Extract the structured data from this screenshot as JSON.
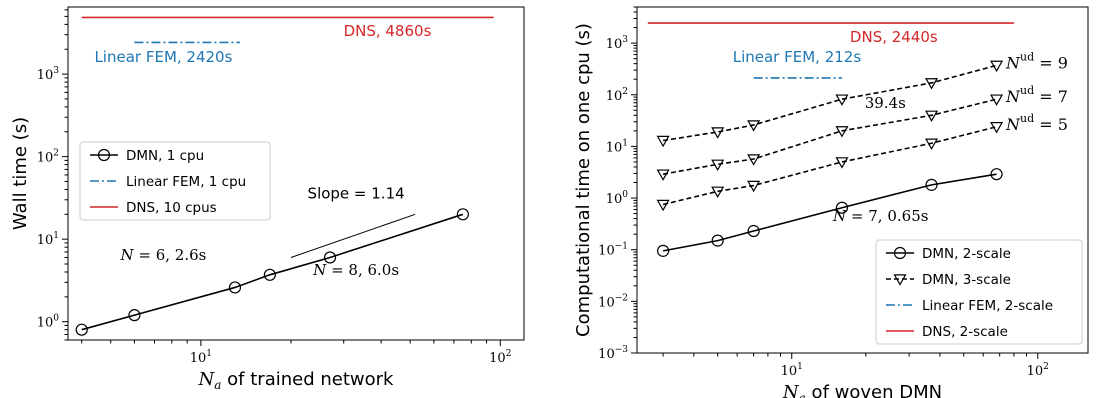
{
  "chart_data": [
    {
      "type": "line",
      "xscale": "log",
      "yscale": "log",
      "xlim": [
        3.6,
        120
      ],
      "ylim": [
        0.6,
        6500
      ],
      "xlabel_math": "N",
      "xlabel_sub": "a",
      "xlabel_text": "of trained network",
      "ylabel": "Wall time (s)",
      "x_ticks": [
        {
          "value": 10,
          "base": "10",
          "exp": "1"
        },
        {
          "value": 100,
          "base": "10",
          "exp": "2"
        }
      ],
      "y_ticks": [
        {
          "value": 1,
          "base": "10",
          "exp": "0"
        },
        {
          "value": 10,
          "base": "10",
          "exp": "1"
        },
        {
          "value": 100,
          "base": "10",
          "exp": "2"
        },
        {
          "value": 1000,
          "base": "10",
          "exp": "3"
        }
      ],
      "series": [
        {
          "name": "DMN, 1 cpu",
          "style": "solid-circle",
          "color": "#000000",
          "x": [
            4,
            6,
            13,
            17,
            27,
            75
          ],
          "y": [
            0.8,
            1.2,
            2.6,
            3.7,
            6.0,
            20
          ]
        },
        {
          "name": "Linear FEM, 1 cpu",
          "style": "dashdot",
          "color": "#1f77b4",
          "x": [
            6,
            13.5
          ],
          "y": [
            2420,
            2420
          ]
        },
        {
          "name": "DNS, 10 cpus",
          "style": "solid",
          "color": "#d62728",
          "x": [
            4,
            95
          ],
          "y": [
            4860,
            4860
          ]
        }
      ],
      "slope_line": {
        "x": [
          20,
          52
        ],
        "y": [
          6.0,
          20
        ]
      },
      "annotations": [
        {
          "text": "Slope = 1.14",
          "x": 33,
          "y": 31,
          "color": "#000000",
          "math": false
        },
        {
          "text": "N = 6,  2.6s",
          "x": 7.5,
          "y": 5.6,
          "color": "#000000",
          "math": true
        },
        {
          "text": "N = 8,  6.0s",
          "x": 33,
          "y": 3.7,
          "color": "#000000",
          "math": true
        },
        {
          "text": "DNS,  4860s",
          "x": 42,
          "y": 2900,
          "color": "#d62728",
          "math": false
        },
        {
          "text": "Linear FEM,  2420s",
          "x": 7.5,
          "y": 1400,
          "color": "#1f77b4",
          "math": false
        }
      ],
      "legend": "center-left"
    },
    {
      "type": "line",
      "xscale": "log",
      "yscale": "log",
      "xlim": [
        2.35,
        160
      ],
      "ylim": [
        0.001,
        5000
      ],
      "xlabel_math": "N",
      "xlabel_sub": "a",
      "xlabel_text": "of woven DMN",
      "ylabel": "Computational time on one cpu (s)",
      "x_ticks": [
        {
          "value": 10,
          "base": "10",
          "exp": "1"
        },
        {
          "value": 100,
          "base": "10",
          "exp": "2"
        }
      ],
      "y_ticks": [
        {
          "value": 0.001,
          "base": "10",
          "exp": "−3"
        },
        {
          "value": 0.01,
          "base": "10",
          "exp": "−2"
        },
        {
          "value": 0.1,
          "base": "10",
          "exp": "−1"
        },
        {
          "value": 1,
          "base": "10",
          "exp": "0"
        },
        {
          "value": 10,
          "base": "10",
          "exp": "1"
        },
        {
          "value": 100,
          "base": "10",
          "exp": "2"
        },
        {
          "value": 1000,
          "base": "10",
          "exp": "3"
        }
      ],
      "series": [
        {
          "name": "DMN, 2-scale",
          "style": "solid-circle",
          "color": "#000000",
          "x": [
            3,
            5,
            7,
            16,
            37,
            68
          ],
          "y": [
            0.095,
            0.15,
            0.23,
            0.65,
            1.8,
            2.9
          ]
        },
        {
          "name": "DMN, 3-scale",
          "style": "dashed-triangle",
          "color": "#000000",
          "x": [
            3,
            5,
            7,
            16,
            37,
            68
          ],
          "y": [
            0.75,
            1.35,
            1.75,
            5.0,
            11.5,
            24
          ]
        },
        {
          "name": "",
          "style": "dashed-triangle",
          "color": "#000000",
          "x": [
            3,
            5,
            7,
            16,
            37,
            68
          ],
          "y": [
            2.9,
            4.5,
            5.7,
            20,
            40,
            82
          ]
        },
        {
          "name": "",
          "style": "dashed-triangle",
          "color": "#000000",
          "x": [
            3,
            5,
            7,
            16,
            37,
            68
          ],
          "y": [
            13,
            19,
            26,
            82,
            170,
            370
          ]
        },
        {
          "name": "Linear FEM, 2-scale",
          "style": "dashdot",
          "color": "#1f77b4",
          "x": [
            7,
            16
          ],
          "y": [
            212,
            212
          ]
        },
        {
          "name": "DNS, 2-scale",
          "style": "solid",
          "color": "#d62728",
          "x": [
            2.6,
            80
          ],
          "y": [
            2440,
            2440
          ]
        }
      ],
      "annotations": [
        {
          "text": "DNS,  2440s",
          "x": 26,
          "y": 1050,
          "color": "#d62728",
          "math": false
        },
        {
          "text": "Linear FEM,  212s",
          "x": 10.5,
          "y": 430,
          "color": "#1f77b4",
          "math": false
        },
        {
          "text": "39.4s",
          "x": 24,
          "y": 55,
          "color": "#000000",
          "math": true
        },
        {
          "text": "N = 7,  0.65s",
          "x": 23,
          "y": 0.36,
          "color": "#000000",
          "math": true
        }
      ],
      "nud_labels": [
        {
          "pre": "N",
          "sup": "ud",
          "post": " = 9",
          "y": 370
        },
        {
          "pre": "N",
          "sup": "ud",
          "post": " = 7",
          "y": 82
        },
        {
          "pre": "N",
          "sup": "ud",
          "post": " = 5",
          "y": 24
        }
      ],
      "legend": "lower-right"
    }
  ]
}
